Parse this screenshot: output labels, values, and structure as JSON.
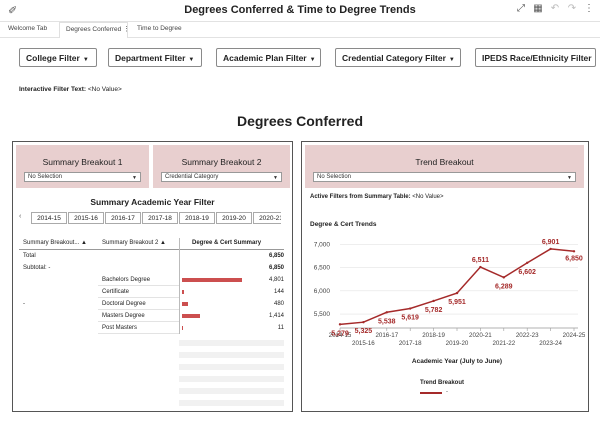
{
  "app": {
    "title": "Degrees Conferred & Time to Degree Trends",
    "pin_icon": "pin-icon"
  },
  "tabs": [
    {
      "label": "Welcome Tab"
    },
    {
      "label": "Degrees Conferred"
    },
    {
      "label": "Time to Degree"
    }
  ],
  "filters": [
    {
      "label": "College Filter"
    },
    {
      "label": "Department Filter"
    },
    {
      "label": "Academic Plan Filter"
    },
    {
      "label": "Credential Category Filter"
    },
    {
      "label": "IPEDS Race/Ethnicity Filter"
    }
  ],
  "interactive": {
    "label": "Interactive Filter Text:",
    "value": "<No Value>"
  },
  "section_title": "Degrees Conferred",
  "summary": {
    "breakout1": {
      "title": "Summary Breakout 1",
      "value": "No Selection"
    },
    "breakout2": {
      "title": "Summary Breakout 2",
      "value": "Credential Category"
    },
    "year_filter_title": "Summary Academic Year Filter",
    "years": [
      "2014-15",
      "2015-16",
      "2016-17",
      "2017-18",
      "2018-19",
      "2019-20",
      "2020-21"
    ],
    "col_headers": [
      "Summary Breakout...",
      "Summary Breakout 2",
      "Degree & Cert Summary"
    ],
    "total_label": "Total",
    "total_value": "6,850",
    "subtotal_label": "Subtotal: -",
    "subtotal_value": "6,850",
    "group_label": "-",
    "rows": [
      {
        "label": "Bachelors Degree",
        "value": "4,801",
        "num": 4801
      },
      {
        "label": "Certificate",
        "value": "144",
        "num": 144
      },
      {
        "label": "Doctoral Degree",
        "value": "480",
        "num": 480
      },
      {
        "label": "Masters Degree",
        "value": "1,414",
        "num": 1414
      },
      {
        "label": "Post Masters",
        "value": "11",
        "num": 11
      }
    ],
    "bar_max": 4801,
    "bar_color": "#cc4f4f"
  },
  "trend": {
    "breakout_title": "Trend Breakout",
    "breakout_value": "No Selection",
    "active_label": "Active Filters from Summary Table:",
    "active_value": "<No Value>",
    "legend_title": "Trend Breakout",
    "legend_label": "-"
  },
  "chart_data": {
    "type": "line",
    "title": "Degree & Cert Trends",
    "xlabel": "Academic Year (July to June)",
    "ylabel": "",
    "x": [
      "2014-15",
      "2015-16",
      "2016-17",
      "2017-18",
      "2018-19",
      "2019-20",
      "2020-21",
      "2021-22",
      "2022-23",
      "2023-24",
      "2024-25"
    ],
    "series": [
      {
        "values": [
          5279,
          5325,
          5538,
          5619,
          5782,
          5951,
          6511,
          6289,
          6602,
          6901,
          6850
        ]
      }
    ],
    "data_labels": [
      "5,279",
      "5,325",
      "5,538",
      "5,619",
      "5,782",
      "5,951",
      "6,511",
      "6,289",
      "6,602",
      "6,901",
      "6,850"
    ],
    "ylim": [
      5200,
      7050
    ],
    "yticks": [
      5500,
      6000,
      6500,
      7000
    ],
    "ytick_labels": [
      "5,500",
      "6,000",
      "6,500",
      "7,000"
    ],
    "color": "#a52a2a",
    "grid": true,
    "legend": "bottom"
  }
}
